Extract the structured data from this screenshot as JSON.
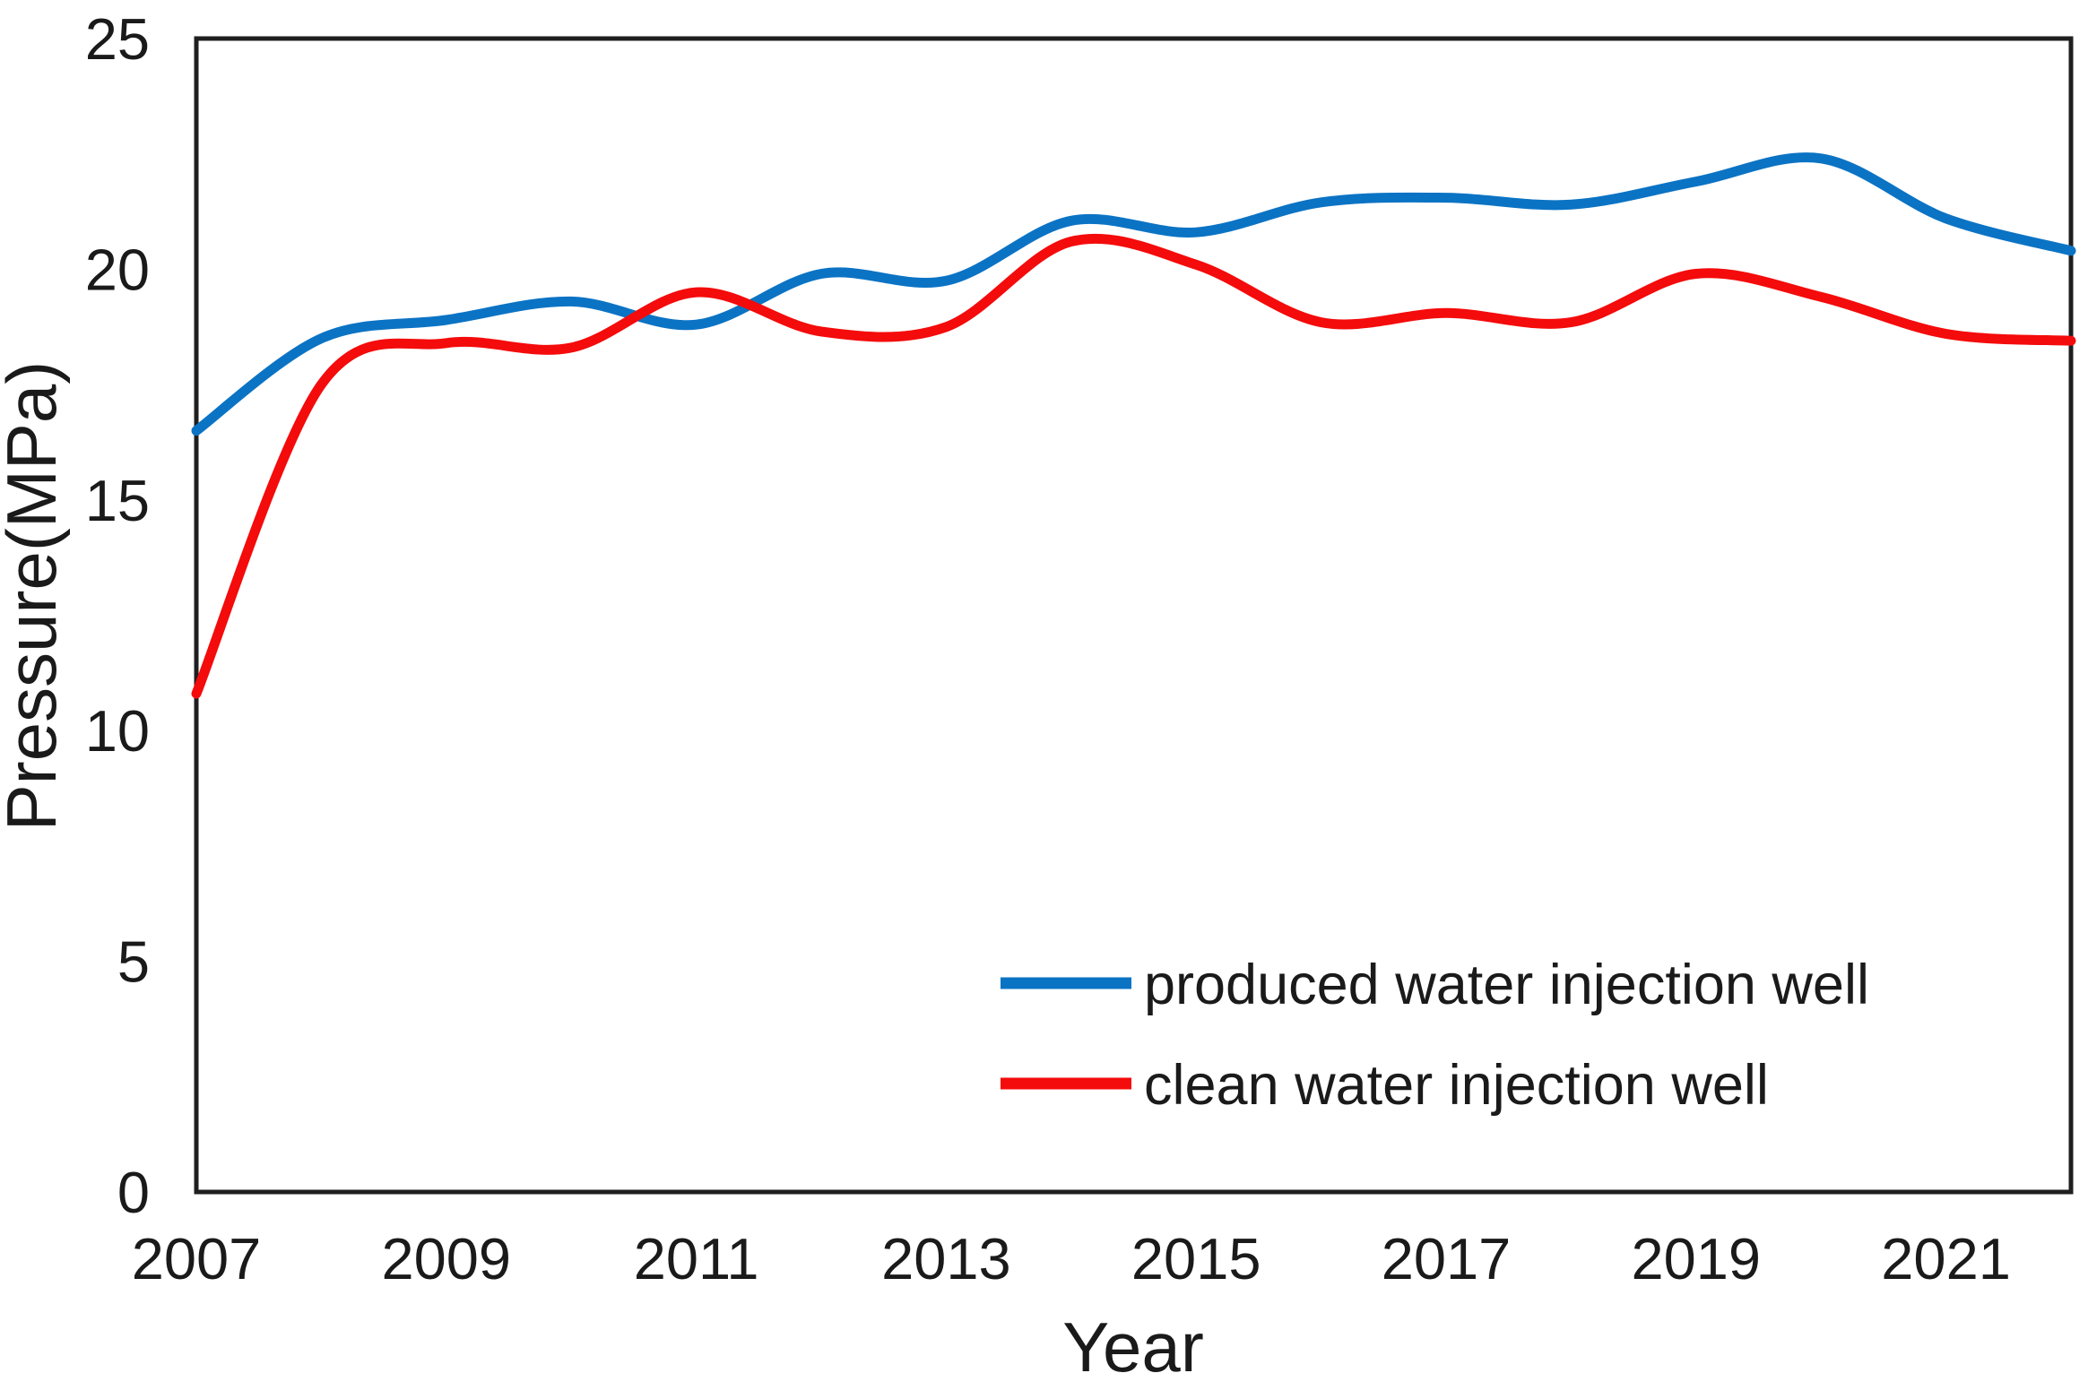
{
  "chart_data": {
    "type": "line",
    "title": "",
    "xlabel": "Year",
    "ylabel": "Pressure(MPa)",
    "x": [
      2007,
      2008,
      2009,
      2010,
      2011,
      2012,
      2013,
      2014,
      2015,
      2016,
      2017,
      2018,
      2019,
      2020,
      2021,
      2022
    ],
    "x_ticks": [
      2007,
      2009,
      2011,
      2013,
      2015,
      2017,
      2019,
      2021
    ],
    "y_ticks": [
      0,
      5,
      10,
      15,
      20,
      25
    ],
    "xlim": [
      2007,
      2022
    ],
    "ylim": [
      0,
      25
    ],
    "grid": false,
    "line_smoothing": true,
    "legend_position": "inside-bottom-right",
    "axis_color": "#1f1f1f",
    "text_color": "#1a1a1a",
    "background_color": "#ffffff",
    "series": [
      {
        "name": "produced water injection well",
        "color": "#0b73c4",
        "values": [
          16.5,
          18.5,
          18.9,
          19.3,
          18.8,
          19.9,
          19.75,
          21.05,
          20.8,
          21.45,
          21.55,
          21.4,
          21.9,
          22.4,
          21.1,
          20.4
        ]
      },
      {
        "name": "clean water injection well",
        "color": "#f40b0b",
        "values": [
          10.8,
          17.5,
          18.4,
          18.3,
          19.5,
          18.65,
          18.75,
          20.6,
          20.1,
          18.85,
          19.05,
          18.85,
          19.9,
          19.4,
          18.6,
          18.45
        ]
      }
    ]
  }
}
